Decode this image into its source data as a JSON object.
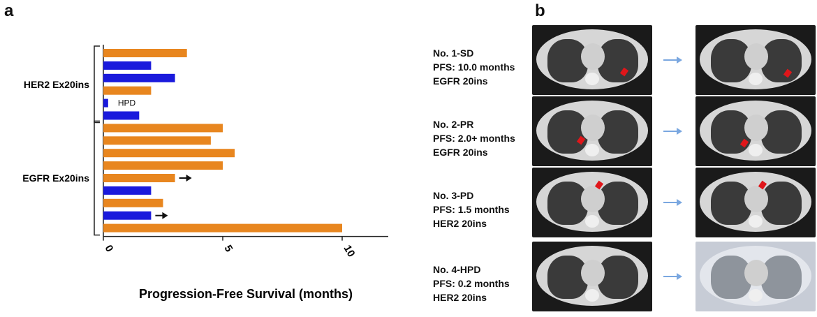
{
  "panels": {
    "a": "a",
    "b": "b"
  },
  "chart_data": {
    "type": "bar",
    "orientation": "horizontal",
    "xlabel": "Progression-Free Survival (months)",
    "xlim": [
      0,
      12
    ],
    "xticks": [
      "0",
      "5",
      "10"
    ],
    "groups": [
      {
        "label": "HER2 Ex20ins"
      },
      {
        "label": "EGFR Ex20ins"
      }
    ],
    "bars": [
      {
        "group": "HER2 Ex20ins",
        "value": 3.5,
        "color": "#e8861f"
      },
      {
        "group": "HER2 Ex20ins",
        "value": 2.0,
        "color": "#1a1adc"
      },
      {
        "group": "HER2 Ex20ins",
        "value": 3.0,
        "color": "#1a1adc"
      },
      {
        "group": "HER2 Ex20ins",
        "value": 2.0,
        "color": "#e8861f"
      },
      {
        "group": "HER2 Ex20ins",
        "value": 0.2,
        "color": "#1a1adc",
        "annotation": "HPD"
      },
      {
        "group": "HER2 Ex20ins",
        "value": 1.5,
        "color": "#1a1adc"
      },
      {
        "group": "EGFR Ex20ins",
        "value": 5.0,
        "color": "#e8861f"
      },
      {
        "group": "EGFR Ex20ins",
        "value": 4.5,
        "color": "#e8861f"
      },
      {
        "group": "EGFR Ex20ins",
        "value": 5.5,
        "color": "#e8861f"
      },
      {
        "group": "EGFR Ex20ins",
        "value": 5.0,
        "color": "#e8861f"
      },
      {
        "group": "EGFR Ex20ins",
        "value": 3.0,
        "color": "#e8861f",
        "ongoing": true
      },
      {
        "group": "EGFR Ex20ins",
        "value": 2.0,
        "color": "#1a1adc"
      },
      {
        "group": "EGFR Ex20ins",
        "value": 2.5,
        "color": "#e8861f"
      },
      {
        "group": "EGFR Ex20ins",
        "value": 2.0,
        "color": "#1a1adc",
        "ongoing": true
      },
      {
        "group": "EGFR Ex20ins",
        "value": 10.0,
        "color": "#e8861f"
      }
    ]
  },
  "cases": [
    {
      "id": "No. 1-SD",
      "pfs": "PFS: 10.0 months",
      "mutation": "EGFR 20ins"
    },
    {
      "id": "No. 2-PR",
      "pfs": "PFS: 2.0+ months",
      "mutation": "EGFR 20ins"
    },
    {
      "id": "No. 3-PD",
      "pfs": "PFS: 1.5 months",
      "mutation": "HER2 20ins"
    },
    {
      "id": "No. 4-HPD",
      "pfs": "PFS: 0.2 months",
      "mutation": "HER2 20ins"
    }
  ],
  "colors": {
    "arrow": "#7aa7e0",
    "lesion": "#e0161a"
  }
}
